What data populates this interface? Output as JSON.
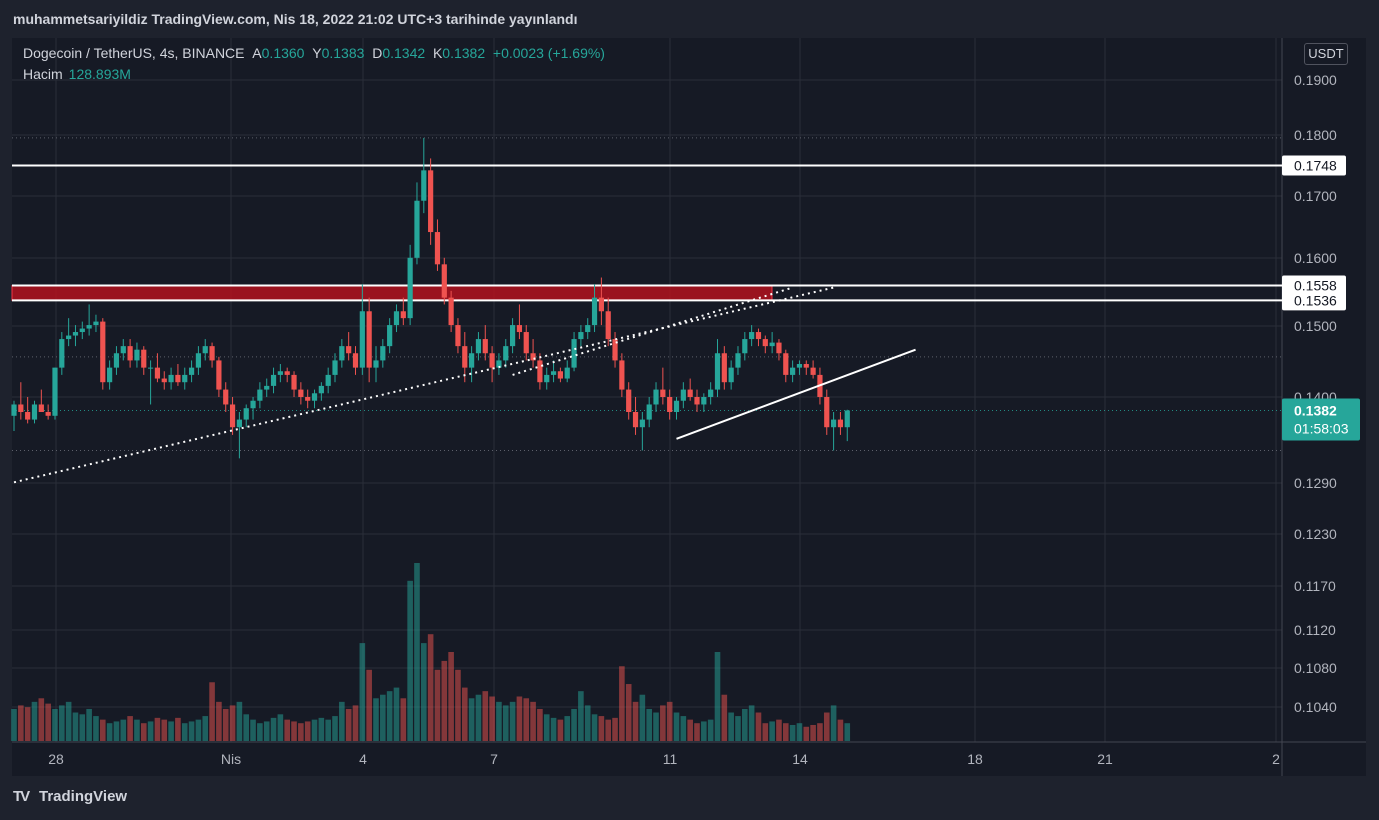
{
  "header": {
    "publication": "muhammetsariyildiz TradingView.com, Nis 18, 2022 21:02 UTC+3 tarihinde yayınlandı"
  },
  "legend": {
    "symbol": "Dogecoin / TetherUS, 4s, BINANCE",
    "open_label": "A",
    "open": "0.1360",
    "high_label": "Y",
    "high": "0.1383",
    "low_label": "D",
    "low": "0.1342",
    "close_label": "K",
    "close": "0.1382",
    "change": "+0.0023 (+1.69%)",
    "volume_label": "Hacim",
    "volume": "128.893M"
  },
  "currency": "USDT",
  "footer": {
    "brand": "TradingView"
  },
  "colors": {
    "up": "#26a69a",
    "down": "#ef5350",
    "background": "#161a25",
    "grid": "#2a2e39",
    "zone": "#b2131f"
  },
  "chart_data": {
    "type": "candlestick",
    "price_scale": "log",
    "y_tick_labels": [
      "0.1900",
      "0.1800",
      "0.1700",
      "0.1600",
      "0.1500",
      "0.1400",
      "0.1290",
      "0.1230",
      "0.1170",
      "0.1120",
      "0.1080",
      "0.1040"
    ],
    "x_tick_labels": [
      "28",
      "Nis",
      "4",
      "7",
      "11",
      "14",
      "18",
      "21",
      "2"
    ],
    "current_price": {
      "value": "0.1382",
      "countdown": "01:58:03"
    },
    "horizontal_levels": [
      {
        "value": 0.1748,
        "label": "0.1748"
      },
      {
        "value": 0.1558,
        "label": "0.1558"
      },
      {
        "value": 0.1536,
        "label": "0.1536"
      }
    ],
    "resistance_zone": {
      "from": 0.1536,
      "to": 0.1558
    },
    "candles": [
      [
        0.1375,
        0.1395,
        0.1355,
        0.139
      ],
      [
        0.139,
        0.142,
        0.137,
        0.138
      ],
      [
        0.138,
        0.14,
        0.1365,
        0.137
      ],
      [
        0.137,
        0.1395,
        0.1365,
        0.139
      ],
      [
        0.139,
        0.141,
        0.138,
        0.138
      ],
      [
        0.138,
        0.139,
        0.137,
        0.1375
      ],
      [
        0.1375,
        0.144,
        0.137,
        0.144
      ],
      [
        0.144,
        0.149,
        0.143,
        0.148
      ],
      [
        0.148,
        0.151,
        0.147,
        0.1485
      ],
      [
        0.1485,
        0.15,
        0.147,
        0.149
      ],
      [
        0.149,
        0.1505,
        0.148,
        0.1495
      ],
      [
        0.1495,
        0.153,
        0.1485,
        0.15
      ],
      [
        0.15,
        0.1515,
        0.149,
        0.1505
      ],
      [
        0.1505,
        0.151,
        0.141,
        0.142
      ],
      [
        0.142,
        0.145,
        0.141,
        0.144
      ],
      [
        0.144,
        0.147,
        0.143,
        0.146
      ],
      [
        0.146,
        0.148,
        0.145,
        0.147
      ],
      [
        0.147,
        0.148,
        0.144,
        0.145
      ],
      [
        0.145,
        0.1475,
        0.144,
        0.1465
      ],
      [
        0.1465,
        0.147,
        0.143,
        0.144
      ],
      [
        0.144,
        0.145,
        0.139,
        0.144
      ],
      [
        0.144,
        0.146,
        0.142,
        0.1425
      ],
      [
        0.1425,
        0.1435,
        0.141,
        0.142
      ],
      [
        0.142,
        0.144,
        0.141,
        0.143
      ],
      [
        0.143,
        0.1445,
        0.1415,
        0.142
      ],
      [
        0.142,
        0.144,
        0.141,
        0.143
      ],
      [
        0.143,
        0.145,
        0.142,
        0.144
      ],
      [
        0.144,
        0.147,
        0.143,
        0.146
      ],
      [
        0.146,
        0.148,
        0.145,
        0.147
      ],
      [
        0.147,
        0.1475,
        0.144,
        0.145
      ],
      [
        0.145,
        0.1455,
        0.14,
        0.141
      ],
      [
        0.141,
        0.142,
        0.138,
        0.139
      ],
      [
        0.139,
        0.14,
        0.135,
        0.136
      ],
      [
        0.136,
        0.138,
        0.132,
        0.137
      ],
      [
        0.137,
        0.139,
        0.136,
        0.1385
      ],
      [
        0.1385,
        0.14,
        0.137,
        0.1395
      ],
      [
        0.1395,
        0.142,
        0.1385,
        0.141
      ],
      [
        0.141,
        0.1425,
        0.14,
        0.1415
      ],
      [
        0.1415,
        0.144,
        0.1405,
        0.143
      ],
      [
        0.143,
        0.1445,
        0.142,
        0.1435
      ],
      [
        0.1435,
        0.144,
        0.142,
        0.143
      ],
      [
        0.143,
        0.1435,
        0.14,
        0.141
      ],
      [
        0.141,
        0.142,
        0.139,
        0.14
      ],
      [
        0.14,
        0.141,
        0.1385,
        0.1395
      ],
      [
        0.1395,
        0.141,
        0.1385,
        0.1405
      ],
      [
        0.1405,
        0.142,
        0.1395,
        0.1415
      ],
      [
        0.1415,
        0.144,
        0.1405,
        0.143
      ],
      [
        0.143,
        0.146,
        0.142,
        0.145
      ],
      [
        0.145,
        0.148,
        0.144,
        0.147
      ],
      [
        0.147,
        0.149,
        0.145,
        0.146
      ],
      [
        0.146,
        0.147,
        0.143,
        0.144
      ],
      [
        0.144,
        0.156,
        0.143,
        0.152
      ],
      [
        0.152,
        0.154,
        0.142,
        0.144
      ],
      [
        0.144,
        0.147,
        0.142,
        0.145
      ],
      [
        0.145,
        0.148,
        0.144,
        0.147
      ],
      [
        0.147,
        0.151,
        0.146,
        0.15
      ],
      [
        0.15,
        0.153,
        0.149,
        0.152
      ],
      [
        0.152,
        0.154,
        0.15,
        0.151
      ],
      [
        0.151,
        0.162,
        0.15,
        0.16
      ],
      [
        0.16,
        0.172,
        0.159,
        0.169
      ],
      [
        0.169,
        0.1795,
        0.167,
        0.174
      ],
      [
        0.174,
        0.176,
        0.162,
        0.164
      ],
      [
        0.164,
        0.166,
        0.158,
        0.159
      ],
      [
        0.159,
        0.16,
        0.153,
        0.154
      ],
      [
        0.154,
        0.155,
        0.149,
        0.15
      ],
      [
        0.15,
        0.151,
        0.146,
        0.147
      ],
      [
        0.147,
        0.149,
        0.142,
        0.144
      ],
      [
        0.144,
        0.147,
        0.142,
        0.146
      ],
      [
        0.146,
        0.149,
        0.145,
        0.148
      ],
      [
        0.148,
        0.15,
        0.145,
        0.146
      ],
      [
        0.146,
        0.147,
        0.142,
        0.144
      ],
      [
        0.144,
        0.146,
        0.143,
        0.145
      ],
      [
        0.145,
        0.148,
        0.144,
        0.147
      ],
      [
        0.147,
        0.151,
        0.146,
        0.15
      ],
      [
        0.15,
        0.153,
        0.148,
        0.149
      ],
      [
        0.149,
        0.15,
        0.145,
        0.146
      ],
      [
        0.146,
        0.148,
        0.144,
        0.145
      ],
      [
        0.145,
        0.146,
        0.141,
        0.142
      ],
      [
        0.142,
        0.144,
        0.141,
        0.143
      ],
      [
        0.143,
        0.145,
        0.142,
        0.1435
      ],
      [
        0.1435,
        0.144,
        0.142,
        0.1425
      ],
      [
        0.1425,
        0.145,
        0.142,
        0.144
      ],
      [
        0.144,
        0.149,
        0.1435,
        0.148
      ],
      [
        0.148,
        0.15,
        0.147,
        0.149
      ],
      [
        0.149,
        0.151,
        0.148,
        0.15
      ],
      [
        0.15,
        0.156,
        0.149,
        0.154
      ],
      [
        0.154,
        0.157,
        0.15,
        0.152
      ],
      [
        0.152,
        0.154,
        0.147,
        0.148
      ],
      [
        0.148,
        0.149,
        0.144,
        0.145
      ],
      [
        0.145,
        0.146,
        0.14,
        0.141
      ],
      [
        0.141,
        0.142,
        0.137,
        0.138
      ],
      [
        0.138,
        0.14,
        0.135,
        0.136
      ],
      [
        0.136,
        0.138,
        0.133,
        0.137
      ],
      [
        0.137,
        0.14,
        0.136,
        0.139
      ],
      [
        0.139,
        0.142,
        0.138,
        0.141
      ],
      [
        0.141,
        0.144,
        0.139,
        0.14
      ],
      [
        0.14,
        0.141,
        0.137,
        0.138
      ],
      [
        0.138,
        0.14,
        0.137,
        0.1395
      ],
      [
        0.1395,
        0.142,
        0.1385,
        0.141
      ],
      [
        0.141,
        0.1425,
        0.1395,
        0.14
      ],
      [
        0.14,
        0.141,
        0.138,
        0.139
      ],
      [
        0.139,
        0.1405,
        0.138,
        0.14
      ],
      [
        0.14,
        0.142,
        0.139,
        0.141
      ],
      [
        0.141,
        0.148,
        0.14,
        0.146
      ],
      [
        0.146,
        0.147,
        0.141,
        0.142
      ],
      [
        0.142,
        0.145,
        0.141,
        0.144
      ],
      [
        0.144,
        0.147,
        0.143,
        0.146
      ],
      [
        0.146,
        0.149,
        0.145,
        0.148
      ],
      [
        0.148,
        0.15,
        0.147,
        0.149
      ],
      [
        0.149,
        0.1495,
        0.147,
        0.148
      ],
      [
        0.148,
        0.1485,
        0.146,
        0.147
      ],
      [
        0.147,
        0.149,
        0.146,
        0.1475
      ],
      [
        0.1475,
        0.148,
        0.145,
        0.146
      ],
      [
        0.146,
        0.1465,
        0.142,
        0.143
      ],
      [
        0.143,
        0.145,
        0.142,
        0.144
      ],
      [
        0.144,
        0.145,
        0.143,
        0.1445
      ],
      [
        0.1445,
        0.145,
        0.143,
        0.144
      ],
      [
        0.144,
        0.145,
        0.1425,
        0.143
      ],
      [
        0.143,
        0.144,
        0.139,
        0.14
      ],
      [
        0.14,
        0.141,
        0.135,
        0.136
      ],
      [
        0.136,
        0.138,
        0.133,
        0.137
      ],
      [
        0.137,
        0.138,
        0.135,
        0.136
      ],
      [
        0.136,
        0.1383,
        0.1342,
        0.1382
      ]
    ],
    "volume_relative": [
      0.18,
      0.2,
      0.19,
      0.22,
      0.24,
      0.21,
      0.18,
      0.2,
      0.22,
      0.16,
      0.15,
      0.18,
      0.14,
      0.12,
      0.1,
      0.11,
      0.12,
      0.14,
      0.12,
      0.1,
      0.11,
      0.13,
      0.12,
      0.11,
      0.13,
      0.1,
      0.11,
      0.12,
      0.14,
      0.33,
      0.22,
      0.18,
      0.2,
      0.22,
      0.15,
      0.12,
      0.1,
      0.11,
      0.13,
      0.15,
      0.12,
      0.11,
      0.1,
      0.11,
      0.12,
      0.13,
      0.12,
      0.14,
      0.22,
      0.18,
      0.2,
      0.55,
      0.4,
      0.24,
      0.26,
      0.28,
      0.3,
      0.24,
      0.9,
      1.0,
      0.55,
      0.6,
      0.4,
      0.45,
      0.5,
      0.4,
      0.3,
      0.24,
      0.26,
      0.28,
      0.25,
      0.22,
      0.2,
      0.22,
      0.25,
      0.24,
      0.22,
      0.18,
      0.15,
      0.13,
      0.12,
      0.14,
      0.18,
      0.28,
      0.2,
      0.15,
      0.14,
      0.12,
      0.13,
      0.42,
      0.32,
      0.22,
      0.26,
      0.18,
      0.16,
      0.2,
      0.22,
      0.16,
      0.14,
      0.12,
      0.1,
      0.11,
      0.12,
      0.5,
      0.26,
      0.16,
      0.14,
      0.18,
      0.2,
      0.16,
      0.1,
      0.11,
      0.12,
      0.1,
      0.09,
      0.1,
      0.08,
      0.09,
      0.1,
      0.16,
      0.2,
      0.12,
      0.1
    ],
    "trendlines": [
      {
        "style": "dotted",
        "from": [
          0,
          0.129
        ],
        "to": [
          120,
          0.1555
        ]
      },
      {
        "style": "solid",
        "from": [
          97,
          0.1345
        ],
        "to": [
          132,
          0.1465
        ]
      },
      {
        "style": "dotted",
        "from": [
          73,
          0.143
        ],
        "to": [
          114,
          0.1555
        ]
      }
    ]
  }
}
